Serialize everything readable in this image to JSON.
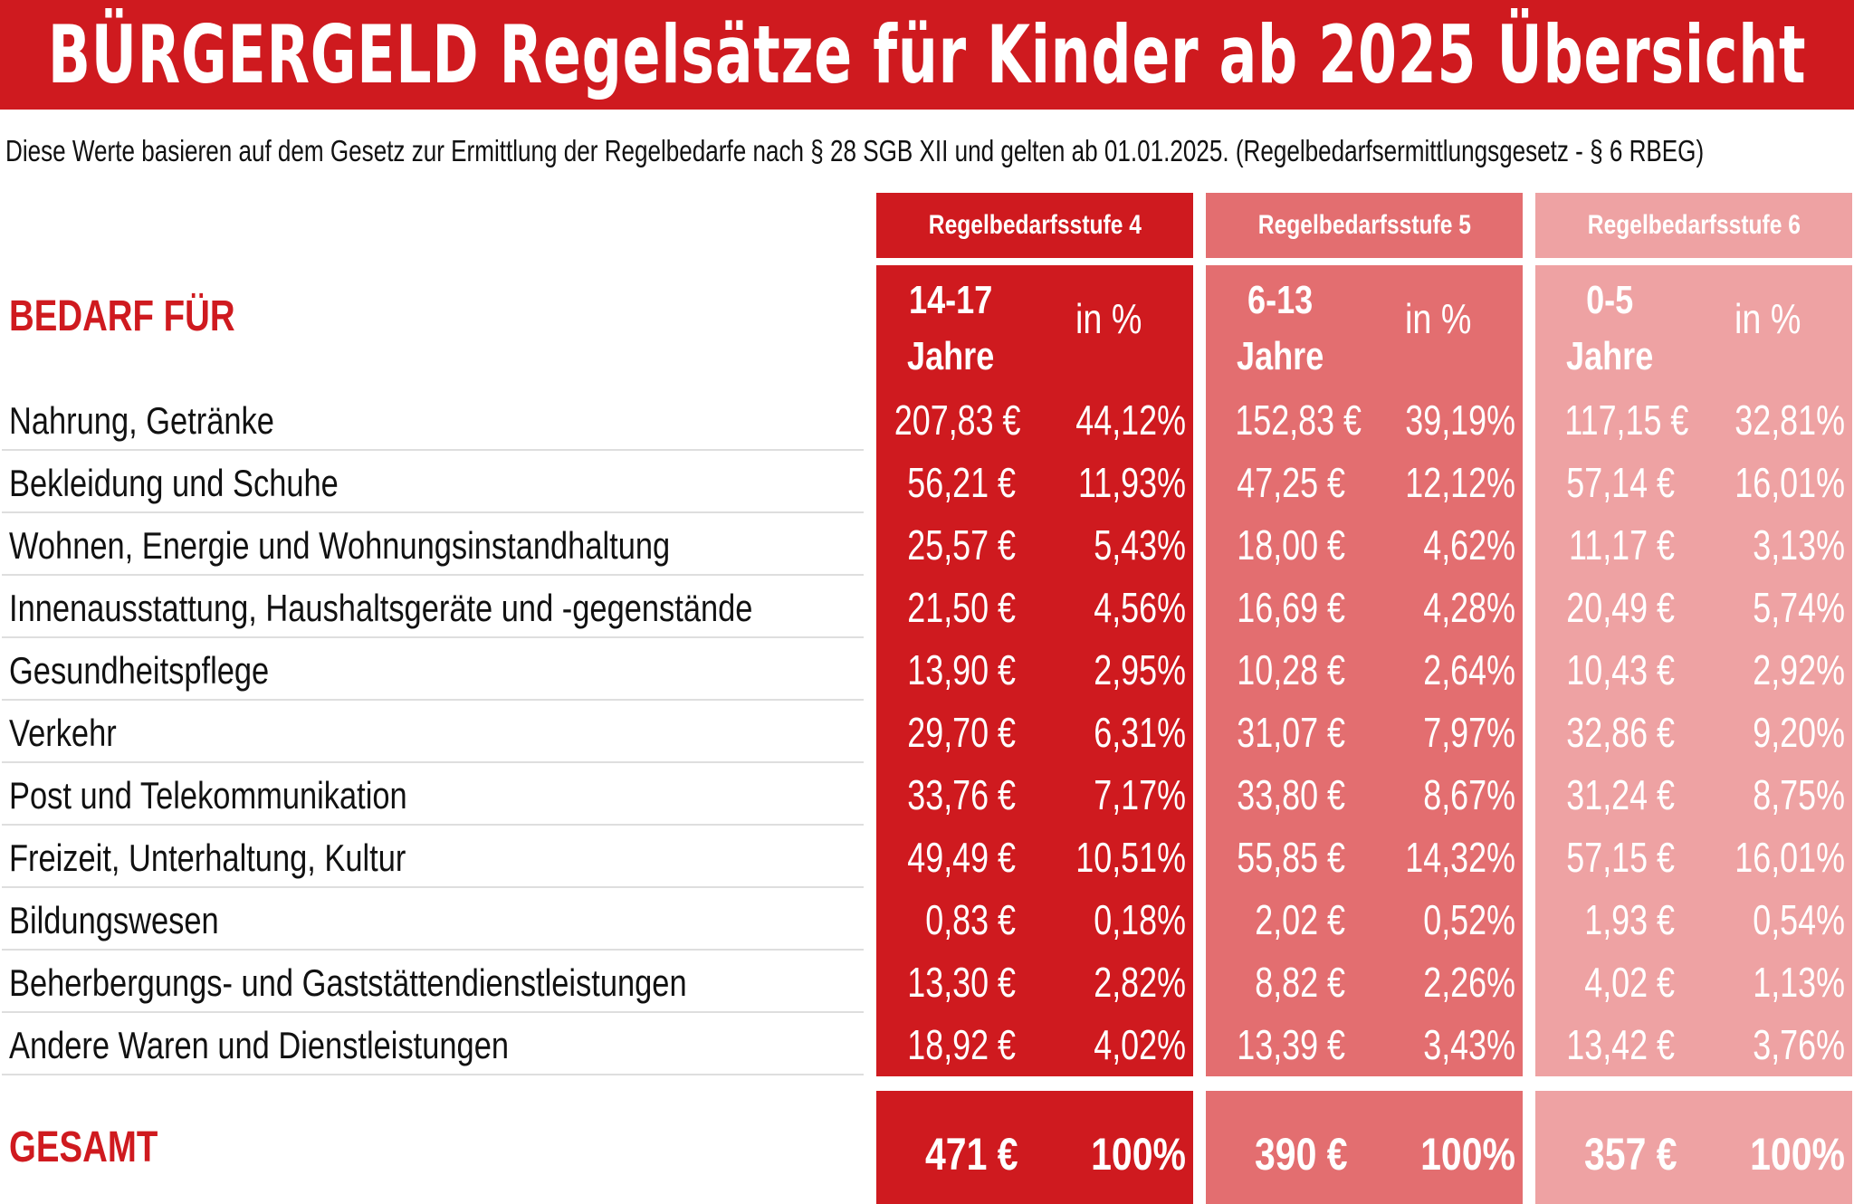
{
  "title": "BÜRGERGELD Regelsätze für Kinder ab 2025 Übersicht",
  "subtitle": "Diese Werte basieren auf dem Gesetz zur Ermittlung der Regelbedarfe nach § 28 SGB XII und gelten ab 01.01.2025. (Regelbedarfsermittlungsgesetz - § 6 RBEG)",
  "row_header": "BEDARF FÜR",
  "total_label": "GESAMT",
  "colors": {
    "stufe4": "#cf1a1f",
    "stufe5": "#e36e70",
    "stufe6": "#eea2a3"
  },
  "columns": [
    {
      "stufe": "Regelbedarfsstufe 4",
      "age_line1": "14-17",
      "age_line2": "Jahre",
      "pct_label": "in %"
    },
    {
      "stufe": "Regelbedarfsstufe 5",
      "age_line1": "6-13",
      "age_line2": "Jahre",
      "pct_label": "in %"
    },
    {
      "stufe": "Regelbedarfsstufe 6",
      "age_line1": "0-5",
      "age_line2": "Jahre",
      "pct_label": "in %"
    }
  ],
  "rows": [
    {
      "label": "Nahrung, Getränke",
      "values": [
        "207,83 €",
        "44,12%",
        "152,83 €",
        "39,19%",
        "117,15 €",
        "32,81%"
      ]
    },
    {
      "label": "Bekleidung und Schuhe",
      "values": [
        "56,21 €",
        "11,93%",
        "47,25 €",
        "12,12%",
        "57,14 €",
        "16,01%"
      ]
    },
    {
      "label": "Wohnen, Energie und Wohnungsinstandhaltung",
      "values": [
        "25,57 €",
        "5,43%",
        "18,00 €",
        "4,62%",
        "11,17 €",
        "3,13%"
      ]
    },
    {
      "label": "Innenausstattung, Haushaltsgeräte und -gegenstände",
      "values": [
        "21,50 €",
        "4,56%",
        "16,69 €",
        "4,28%",
        "20,49 €",
        "5,74%"
      ]
    },
    {
      "label": "Gesundheitspflege",
      "values": [
        "13,90 €",
        "2,95%",
        "10,28 €",
        "2,64%",
        "10,43 €",
        "2,92%"
      ]
    },
    {
      "label": "Verkehr",
      "values": [
        "29,70 €",
        "6,31%",
        "31,07 €",
        "7,97%",
        "32,86 €",
        "9,20%"
      ]
    },
    {
      "label": "Post und Telekommunikation",
      "values": [
        "33,76 €",
        "7,17%",
        "33,80 €",
        "8,67%",
        "31,24 €",
        "8,75%"
      ]
    },
    {
      "label": "Freizeit, Unterhaltung, Kultur",
      "values": [
        "49,49 €",
        "10,51%",
        "55,85 €",
        "14,32%",
        "57,15 €",
        "16,01%"
      ]
    },
    {
      "label": "Bildungswesen",
      "values": [
        "0,83 €",
        "0,18%",
        "2,02 €",
        "0,52%",
        "1,93 €",
        "0,54%"
      ]
    },
    {
      "label": "Beherbergungs- und Gaststättendienstleistungen",
      "values": [
        "13,30 €",
        "2,82%",
        "8,82 €",
        "2,26%",
        "4,02 €",
        "1,13%"
      ]
    },
    {
      "label": "Andere Waren und Dienstleistungen",
      "values": [
        "18,92 €",
        "4,02%",
        "13,39 €",
        "3,43%",
        "13,42 €",
        "3,76%"
      ]
    }
  ],
  "totals": [
    "471 €",
    "100%",
    "390 €",
    "100%",
    "357 €",
    "100%"
  ]
}
